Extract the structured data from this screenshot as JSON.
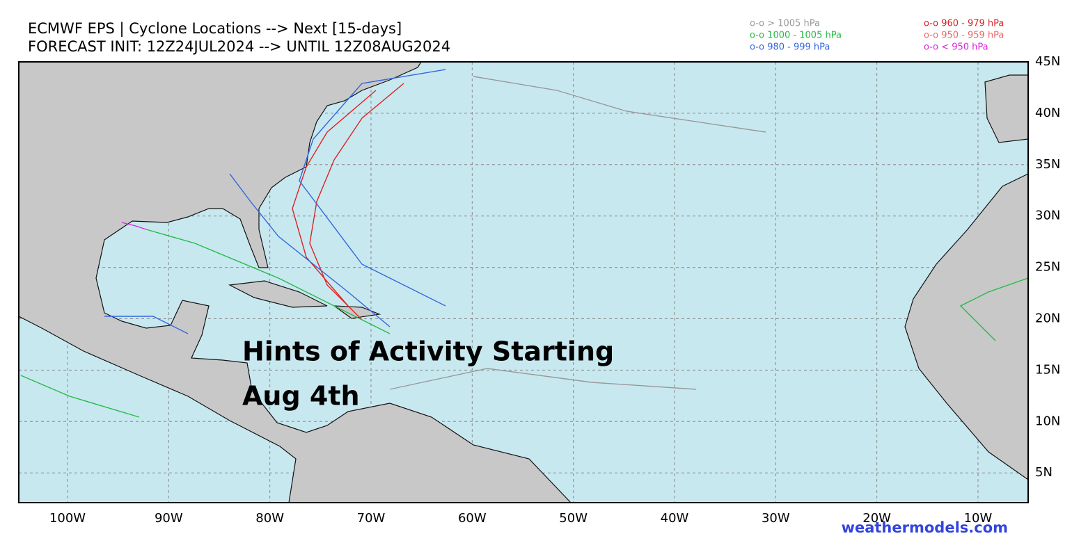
{
  "header": {
    "title": "ECMWF EPS | Cyclone Locations --> Next [15-days]",
    "subtitle": "FORECAST INIT: 12Z24JUL2024 --> UNTIL 12Z08AUG2024"
  },
  "legend": [
    {
      "label": "o-o > 1005 hPa",
      "color": "#999999"
    },
    {
      "label": "o-o 1000 - 1005 hPa",
      "color": "#22bb44"
    },
    {
      "label": "o-o 980 - 999 hPa",
      "color": "#3366dd"
    },
    {
      "label": "o-o 960 - 979 hPa",
      "color": "#dd2222"
    },
    {
      "label": "o-o 950 - 959 hPa",
      "color": "#ee6666"
    },
    {
      "label": "o-o < 950 hPa",
      "color": "#dd22dd"
    }
  ],
  "map": {
    "lat_labels": [
      "45N",
      "40N",
      "35N",
      "30N",
      "25N",
      "20N",
      "15N",
      "10N",
      "5N"
    ],
    "lon_labels": [
      "100W",
      "90W",
      "80W",
      "70W",
      "60W",
      "50W",
      "40W",
      "30W",
      "20W",
      "10W"
    ]
  },
  "annotation": [
    "Hints of Activity Starting",
    "Aug 4th"
  ],
  "credit": "weathermodels.com"
}
